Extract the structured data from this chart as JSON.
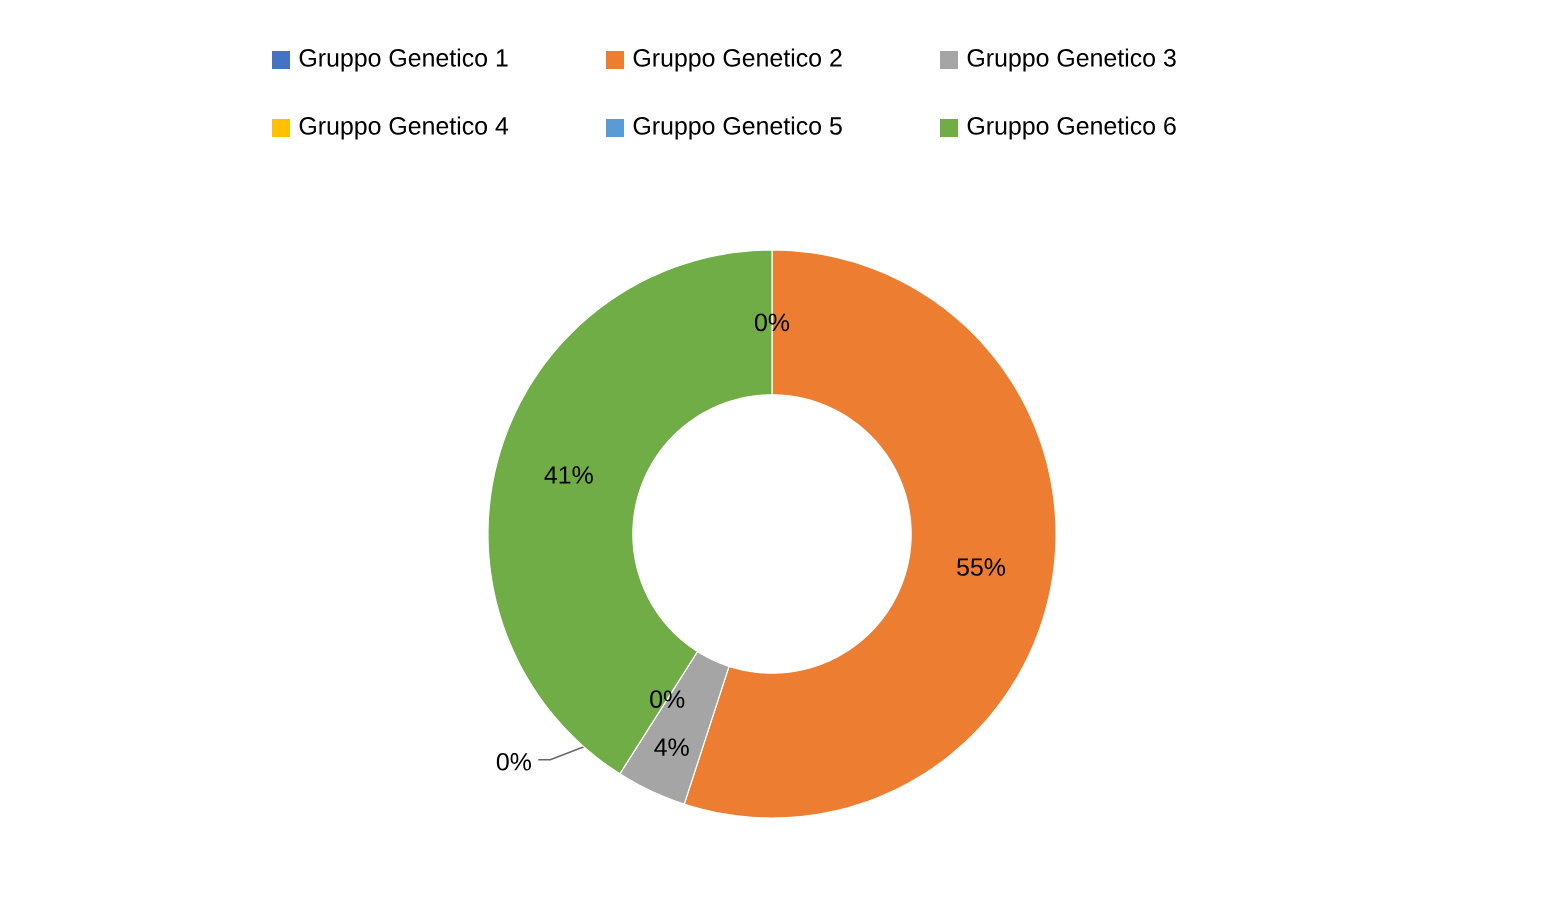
{
  "chart_data": {
    "type": "donut",
    "categories": [
      "Gruppo Genetico 1",
      "Gruppo Genetico 2",
      "Gruppo Genetico 3",
      "Gruppo Genetico 4",
      "Gruppo Genetico 5",
      "Gruppo Genetico 6"
    ],
    "values": [
      0,
      55,
      4,
      0,
      0,
      41
    ],
    "colors": [
      "#4472c4",
      "#ed7d31",
      "#a5a5a5",
      "#ffc000",
      "#5b9bd5",
      "#70ad47"
    ],
    "value_labels": [
      "0%",
      "55%",
      "4%",
      "0%",
      "0%",
      "41%"
    ],
    "legend": "top"
  }
}
